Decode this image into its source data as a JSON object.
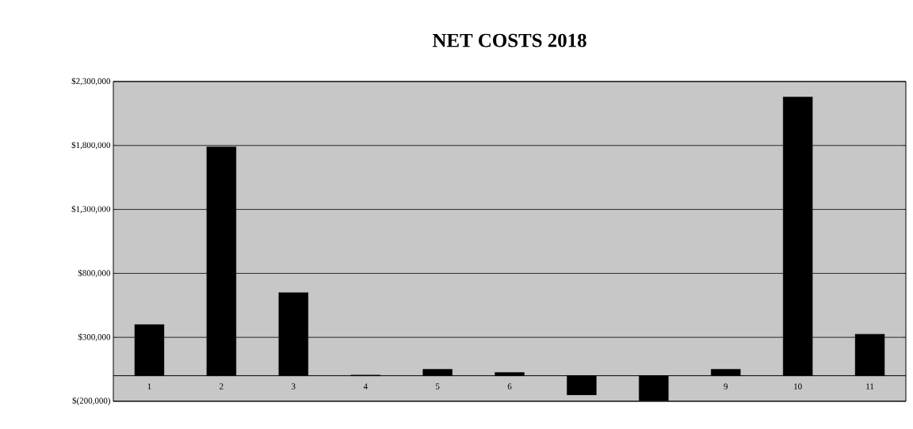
{
  "chart_data": {
    "type": "bar",
    "title": "NET COSTS 2018",
    "categories": [
      "1",
      "2",
      "3",
      "4",
      "5",
      "6",
      null,
      null,
      "9",
      "10",
      "11"
    ],
    "values": [
      400000,
      1790000,
      650000,
      5000,
      50000,
      25000,
      -150000,
      -195000,
      50000,
      2180000,
      325000
    ],
    "color": "#000000",
    "ylim": [
      -200000,
      2300000
    ],
    "yticks": [
      {
        "value": -200000,
        "label": "$(200,000)"
      },
      {
        "value": 300000,
        "label": "$300,000"
      },
      {
        "value": 800000,
        "label": "$800,000"
      },
      {
        "value": 1300000,
        "label": "$1,300,000"
      },
      {
        "value": 1800000,
        "label": "$1,800,000"
      },
      {
        "value": 2300000,
        "label": "$2,300,000"
      }
    ],
    "grid": "y"
  }
}
